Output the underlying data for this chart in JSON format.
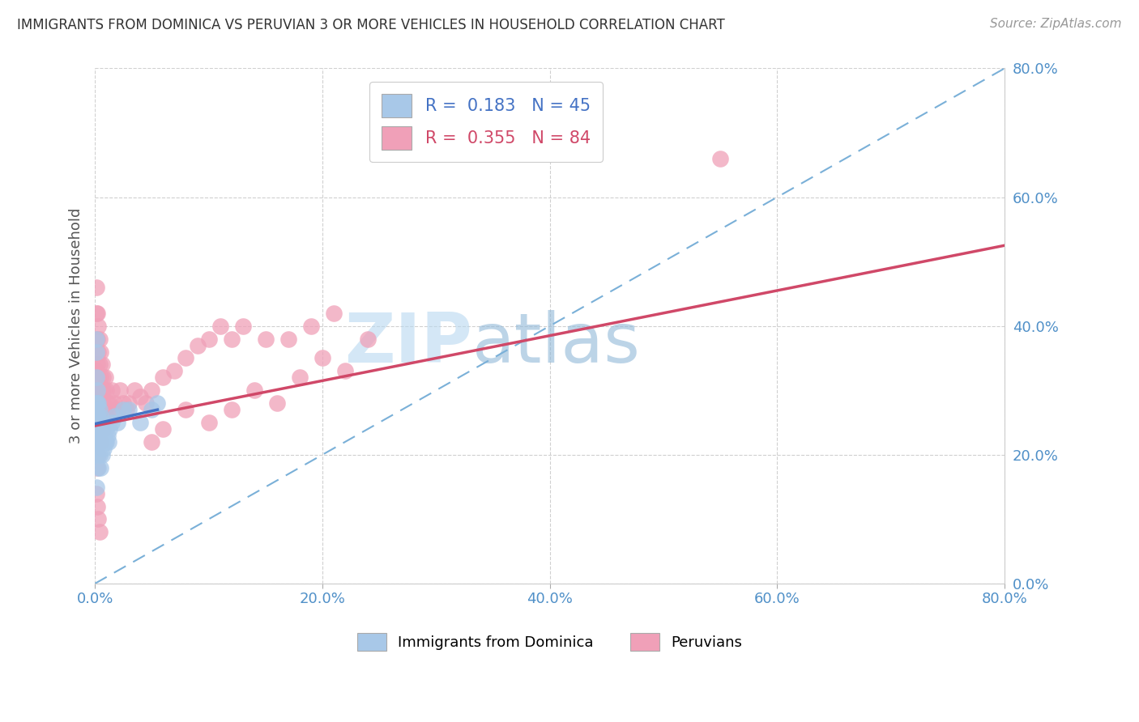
{
  "title": "IMMIGRANTS FROM DOMINICA VS PERUVIAN 3 OR MORE VEHICLES IN HOUSEHOLD CORRELATION CHART",
  "source": "Source: ZipAtlas.com",
  "ylabel": "3 or more Vehicles in Household",
  "xlim": [
    0.0,
    0.8
  ],
  "ylim": [
    0.0,
    0.8
  ],
  "xticks": [
    0.0,
    0.2,
    0.4,
    0.6,
    0.8
  ],
  "yticks": [
    0.0,
    0.2,
    0.4,
    0.6,
    0.8
  ],
  "legend1_label": "R =  0.183   N = 45",
  "legend2_label": "R =  0.355   N = 84",
  "legend_bottom_label1": "Immigrants from Dominica",
  "legend_bottom_label2": "Peruvians",
  "watermark_zip": "ZIP",
  "watermark_atlas": "atlas",
  "blue_color": "#a8c8e8",
  "pink_color": "#f0a0b8",
  "blue_line_color": "#4472c4",
  "pink_line_color": "#d04868",
  "dash_line_color": "#7ab0d8",
  "tick_label_color": "#5090c8",
  "grid_color": "#d0d0d0",
  "blue_scatter_x": [
    0.001,
    0.001,
    0.001,
    0.001,
    0.001,
    0.002,
    0.002,
    0.002,
    0.002,
    0.002,
    0.003,
    0.003,
    0.003,
    0.003,
    0.003,
    0.004,
    0.004,
    0.004,
    0.004,
    0.005,
    0.005,
    0.005,
    0.005,
    0.006,
    0.006,
    0.006,
    0.007,
    0.007,
    0.008,
    0.008,
    0.009,
    0.01,
    0.01,
    0.011,
    0.012,
    0.013,
    0.015,
    0.018,
    0.02,
    0.025,
    0.03,
    0.04,
    0.05,
    0.055,
    0.001
  ],
  "blue_scatter_y": [
    0.38,
    0.36,
    0.32,
    0.28,
    0.22,
    0.3,
    0.28,
    0.26,
    0.24,
    0.2,
    0.28,
    0.26,
    0.24,
    0.22,
    0.18,
    0.27,
    0.25,
    0.23,
    0.2,
    0.26,
    0.24,
    0.22,
    0.18,
    0.25,
    0.23,
    0.2,
    0.24,
    0.22,
    0.23,
    0.21,
    0.22,
    0.24,
    0.22,
    0.23,
    0.22,
    0.24,
    0.25,
    0.26,
    0.25,
    0.27,
    0.27,
    0.25,
    0.27,
    0.28,
    0.15
  ],
  "pink_scatter_x": [
    0.001,
    0.001,
    0.001,
    0.001,
    0.001,
    0.001,
    0.001,
    0.001,
    0.001,
    0.002,
    0.002,
    0.002,
    0.002,
    0.002,
    0.002,
    0.002,
    0.003,
    0.003,
    0.003,
    0.003,
    0.003,
    0.003,
    0.004,
    0.004,
    0.004,
    0.004,
    0.005,
    0.005,
    0.005,
    0.005,
    0.006,
    0.006,
    0.006,
    0.007,
    0.007,
    0.007,
    0.008,
    0.008,
    0.009,
    0.009,
    0.01,
    0.01,
    0.011,
    0.012,
    0.013,
    0.015,
    0.017,
    0.02,
    0.022,
    0.025,
    0.028,
    0.03,
    0.035,
    0.04,
    0.045,
    0.05,
    0.06,
    0.07,
    0.08,
    0.09,
    0.1,
    0.11,
    0.12,
    0.13,
    0.15,
    0.17,
    0.19,
    0.21,
    0.1,
    0.12,
    0.14,
    0.16,
    0.18,
    0.2,
    0.22,
    0.24,
    0.05,
    0.06,
    0.08,
    0.55,
    0.001,
    0.002,
    0.003,
    0.004
  ],
  "pink_scatter_y": [
    0.46,
    0.42,
    0.38,
    0.36,
    0.33,
    0.3,
    0.27,
    0.24,
    0.2,
    0.42,
    0.38,
    0.34,
    0.3,
    0.26,
    0.22,
    0.18,
    0.4,
    0.36,
    0.32,
    0.28,
    0.24,
    0.2,
    0.38,
    0.34,
    0.3,
    0.24,
    0.36,
    0.32,
    0.28,
    0.22,
    0.34,
    0.3,
    0.26,
    0.32,
    0.28,
    0.24,
    0.3,
    0.26,
    0.32,
    0.27,
    0.3,
    0.26,
    0.28,
    0.27,
    0.28,
    0.3,
    0.28,
    0.27,
    0.3,
    0.28,
    0.27,
    0.28,
    0.3,
    0.29,
    0.28,
    0.3,
    0.32,
    0.33,
    0.35,
    0.37,
    0.38,
    0.4,
    0.38,
    0.4,
    0.38,
    0.38,
    0.4,
    0.42,
    0.25,
    0.27,
    0.3,
    0.28,
    0.32,
    0.35,
    0.33,
    0.38,
    0.22,
    0.24,
    0.27,
    0.66,
    0.14,
    0.12,
    0.1,
    0.08
  ],
  "blue_trend_x": [
    0.0,
    0.055
  ],
  "blue_trend_y": [
    0.248,
    0.27
  ],
  "pink_trend_x": [
    0.0,
    0.8
  ],
  "pink_trend_y": [
    0.245,
    0.525
  ]
}
